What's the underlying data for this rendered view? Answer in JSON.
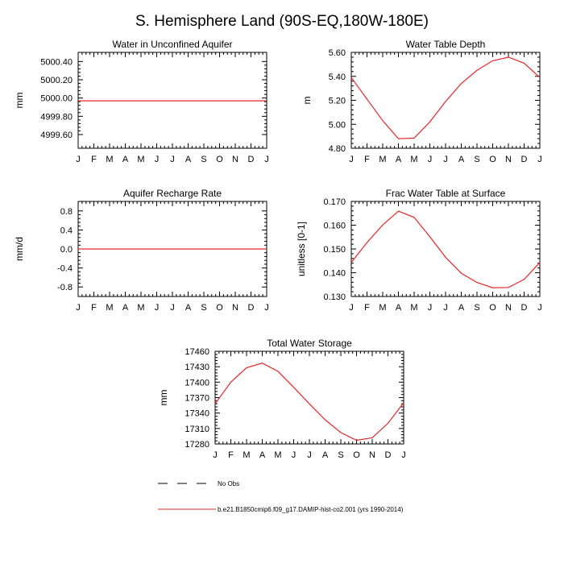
{
  "figure": {
    "title": "S. Hemisphere Land (90S-EQ,180W-180E)"
  },
  "colors": {
    "model_line": "#e8262a",
    "obs_line": "#000000",
    "axis": "#000000"
  },
  "legend": {
    "entries": [
      {
        "label": "No Obs",
        "style": "dashed",
        "color": "#000000"
      },
      {
        "label": "b.e21.B1850cmip6.f09_g17.DAMIP-hist-co2.001 (yrs 1990-2014)",
        "style": "solid",
        "color": "#e8262a"
      }
    ]
  },
  "chart_data": [
    {
      "type": "line",
      "title": "Water in Unconfined Aquifer",
      "xlabel": "",
      "ylabel": "mm",
      "categories": [
        "J",
        "F",
        "M",
        "A",
        "M",
        "J",
        "J",
        "A",
        "S",
        "O",
        "N",
        "D",
        "J"
      ],
      "ylim": [
        4999.45,
        5000.5
      ],
      "yticks": [
        4999.6,
        4999.8,
        5000.0,
        5000.2,
        5000.4
      ],
      "ytick_labels": [
        "4999.60",
        "4999.80",
        "5000.00",
        "5000.20",
        "5000.40"
      ],
      "series": [
        {
          "values": [
            4999.97,
            4999.97,
            4999.97,
            4999.97,
            4999.97,
            4999.97,
            4999.97,
            4999.97,
            4999.97,
            4999.97,
            4999.97,
            4999.97,
            4999.97
          ]
        }
      ]
    },
    {
      "type": "line",
      "title": "Water Table Depth",
      "xlabel": "",
      "ylabel": "m",
      "categories": [
        "J",
        "F",
        "M",
        "A",
        "M",
        "J",
        "J",
        "A",
        "S",
        "O",
        "N",
        "D",
        "J"
      ],
      "ylim": [
        4.8,
        5.6
      ],
      "yticks": [
        4.8,
        5.0,
        5.2,
        5.4,
        5.6
      ],
      "ytick_labels": [
        "4.80",
        "5.00",
        "5.20",
        "5.40",
        "5.60"
      ],
      "series": [
        {
          "values": [
            5.39,
            5.21,
            5.03,
            4.88,
            4.885,
            5.02,
            5.19,
            5.34,
            5.45,
            5.53,
            5.56,
            5.51,
            5.39
          ]
        }
      ]
    },
    {
      "type": "line",
      "title": "Aquifer Recharge Rate",
      "xlabel": "",
      "ylabel": "mm/d",
      "categories": [
        "J",
        "F",
        "M",
        "A",
        "M",
        "J",
        "J",
        "A",
        "S",
        "O",
        "N",
        "D",
        "J"
      ],
      "ylim": [
        -1.0,
        1.0
      ],
      "yticks": [
        -0.8,
        -0.4,
        0.0,
        0.4,
        0.8
      ],
      "ytick_labels": [
        "-0.8",
        "-0.4",
        "0.0",
        "0.4",
        "0.8"
      ],
      "series": [
        {
          "values": [
            0,
            0,
            0,
            0,
            0,
            0,
            0,
            0,
            0,
            0,
            0,
            0,
            0
          ]
        }
      ]
    },
    {
      "type": "line",
      "title": "Frac Water Table at Surface",
      "xlabel": "",
      "ylabel": "unitless [0-1]",
      "categories": [
        "J",
        "F",
        "M",
        "A",
        "M",
        "J",
        "J",
        "A",
        "S",
        "O",
        "N",
        "D",
        "J"
      ],
      "ylim": [
        0.13,
        0.17
      ],
      "yticks": [
        0.13,
        0.14,
        0.15,
        0.16,
        0.17
      ],
      "ytick_labels": [
        "0.130",
        "0.140",
        "0.150",
        "0.160",
        "0.170"
      ],
      "series": [
        {
          "values": [
            0.1443,
            0.1527,
            0.1601,
            0.1659,
            0.1633,
            0.1552,
            0.1465,
            0.1398,
            0.1359,
            0.1337,
            0.1338,
            0.1372,
            0.1443
          ]
        }
      ]
    },
    {
      "type": "line",
      "title": "Total Water Storage",
      "xlabel": "",
      "ylabel": "mm",
      "categories": [
        "J",
        "F",
        "M",
        "A",
        "M",
        "J",
        "J",
        "A",
        "S",
        "O",
        "N",
        "D",
        "J"
      ],
      "ylim": [
        17280,
        17460
      ],
      "yticks": [
        17280,
        17310,
        17340,
        17370,
        17400,
        17430,
        17460
      ],
      "ytick_labels": [
        "17280",
        "17310",
        "17340",
        "17370",
        "17400",
        "17430",
        "17460"
      ],
      "series": [
        {
          "values": [
            17358,
            17400,
            17428,
            17437,
            17421,
            17390,
            17358,
            17327,
            17302,
            17287,
            17292,
            17320,
            17360
          ]
        }
      ]
    }
  ]
}
